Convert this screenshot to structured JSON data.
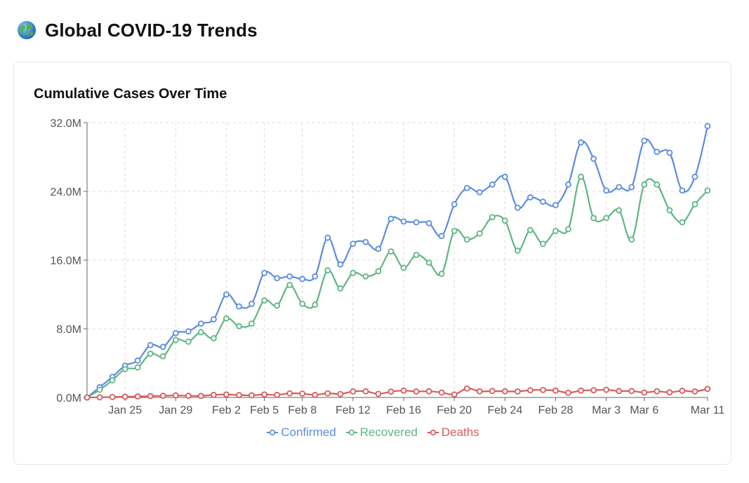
{
  "header": {
    "title": "Global COVID-19 Trends",
    "icon": "globe-icon"
  },
  "card": {
    "title": "Cumulative Cases Over Time"
  },
  "chart_data": {
    "type": "line",
    "title": "Cumulative Cases Over Time",
    "xlabel": "",
    "ylabel": "",
    "ylim": [
      0,
      32
    ],
    "y_unit": "M",
    "y_ticks": [
      "0.0M",
      "8.0M",
      "16.0M",
      "24.0M",
      "32.0M"
    ],
    "x_tick_labels": [
      "Jan 25",
      "Jan 29",
      "Feb 2",
      "Feb 5",
      "Feb 8",
      "Feb 12",
      "Feb 16",
      "Feb 20",
      "Feb 24",
      "Feb 28",
      "Mar 3",
      "Mar 6",
      "Mar 11"
    ],
    "x_tick_index": [
      3,
      7,
      11,
      14,
      17,
      21,
      25,
      29,
      33,
      37,
      41,
      44,
      49
    ],
    "grid": true,
    "legend_position": "bottom",
    "series": [
      {
        "name": "Confirmed",
        "color": "#5b8ce0",
        "values": [
          0.0,
          1.2,
          2.4,
          3.7,
          4.3,
          6.1,
          5.9,
          7.5,
          7.7,
          8.6,
          9.1,
          12.0,
          10.6,
          10.9,
          14.5,
          13.9,
          14.1,
          13.8,
          14.1,
          18.6,
          15.5,
          17.9,
          18.1,
          17.3,
          20.8,
          20.5,
          20.4,
          20.3,
          18.8,
          22.5,
          24.4,
          23.9,
          24.8,
          25.7,
          22.1,
          23.3,
          22.8,
          22.4,
          24.8,
          29.7,
          27.8,
          24.1,
          24.5,
          24.5,
          29.9,
          28.6,
          28.5,
          24.1,
          25.7,
          31.6
        ]
      },
      {
        "name": "Recovered",
        "color": "#5fb583",
        "values": [
          0.0,
          0.9,
          2.0,
          3.3,
          3.5,
          5.1,
          4.8,
          6.7,
          6.5,
          7.6,
          6.9,
          9.2,
          8.3,
          8.6,
          11.3,
          10.7,
          13.1,
          10.9,
          10.8,
          14.8,
          12.7,
          14.5,
          14.1,
          14.7,
          17.0,
          15.1,
          16.6,
          15.7,
          14.4,
          19.4,
          18.4,
          19.1,
          21.0,
          20.6,
          17.1,
          19.5,
          17.9,
          19.4,
          19.6,
          25.7,
          20.9,
          20.9,
          21.8,
          18.4,
          24.8,
          24.8,
          21.8,
          20.4,
          22.5,
          24.1
        ]
      },
      {
        "name": "Deaths",
        "color": "#d85a5a",
        "values": [
          0.0,
          0.02,
          0.05,
          0.09,
          0.12,
          0.16,
          0.2,
          0.24,
          0.2,
          0.18,
          0.3,
          0.35,
          0.28,
          0.25,
          0.35,
          0.3,
          0.48,
          0.45,
          0.3,
          0.48,
          0.4,
          0.7,
          0.72,
          0.42,
          0.68,
          0.8,
          0.7,
          0.72,
          0.58,
          0.35,
          1.05,
          0.72,
          0.75,
          0.72,
          0.7,
          0.85,
          0.88,
          0.8,
          0.55,
          0.8,
          0.85,
          0.9,
          0.75,
          0.75,
          0.58,
          0.72,
          0.6,
          0.78,
          0.7,
          1.0
        ]
      }
    ]
  }
}
